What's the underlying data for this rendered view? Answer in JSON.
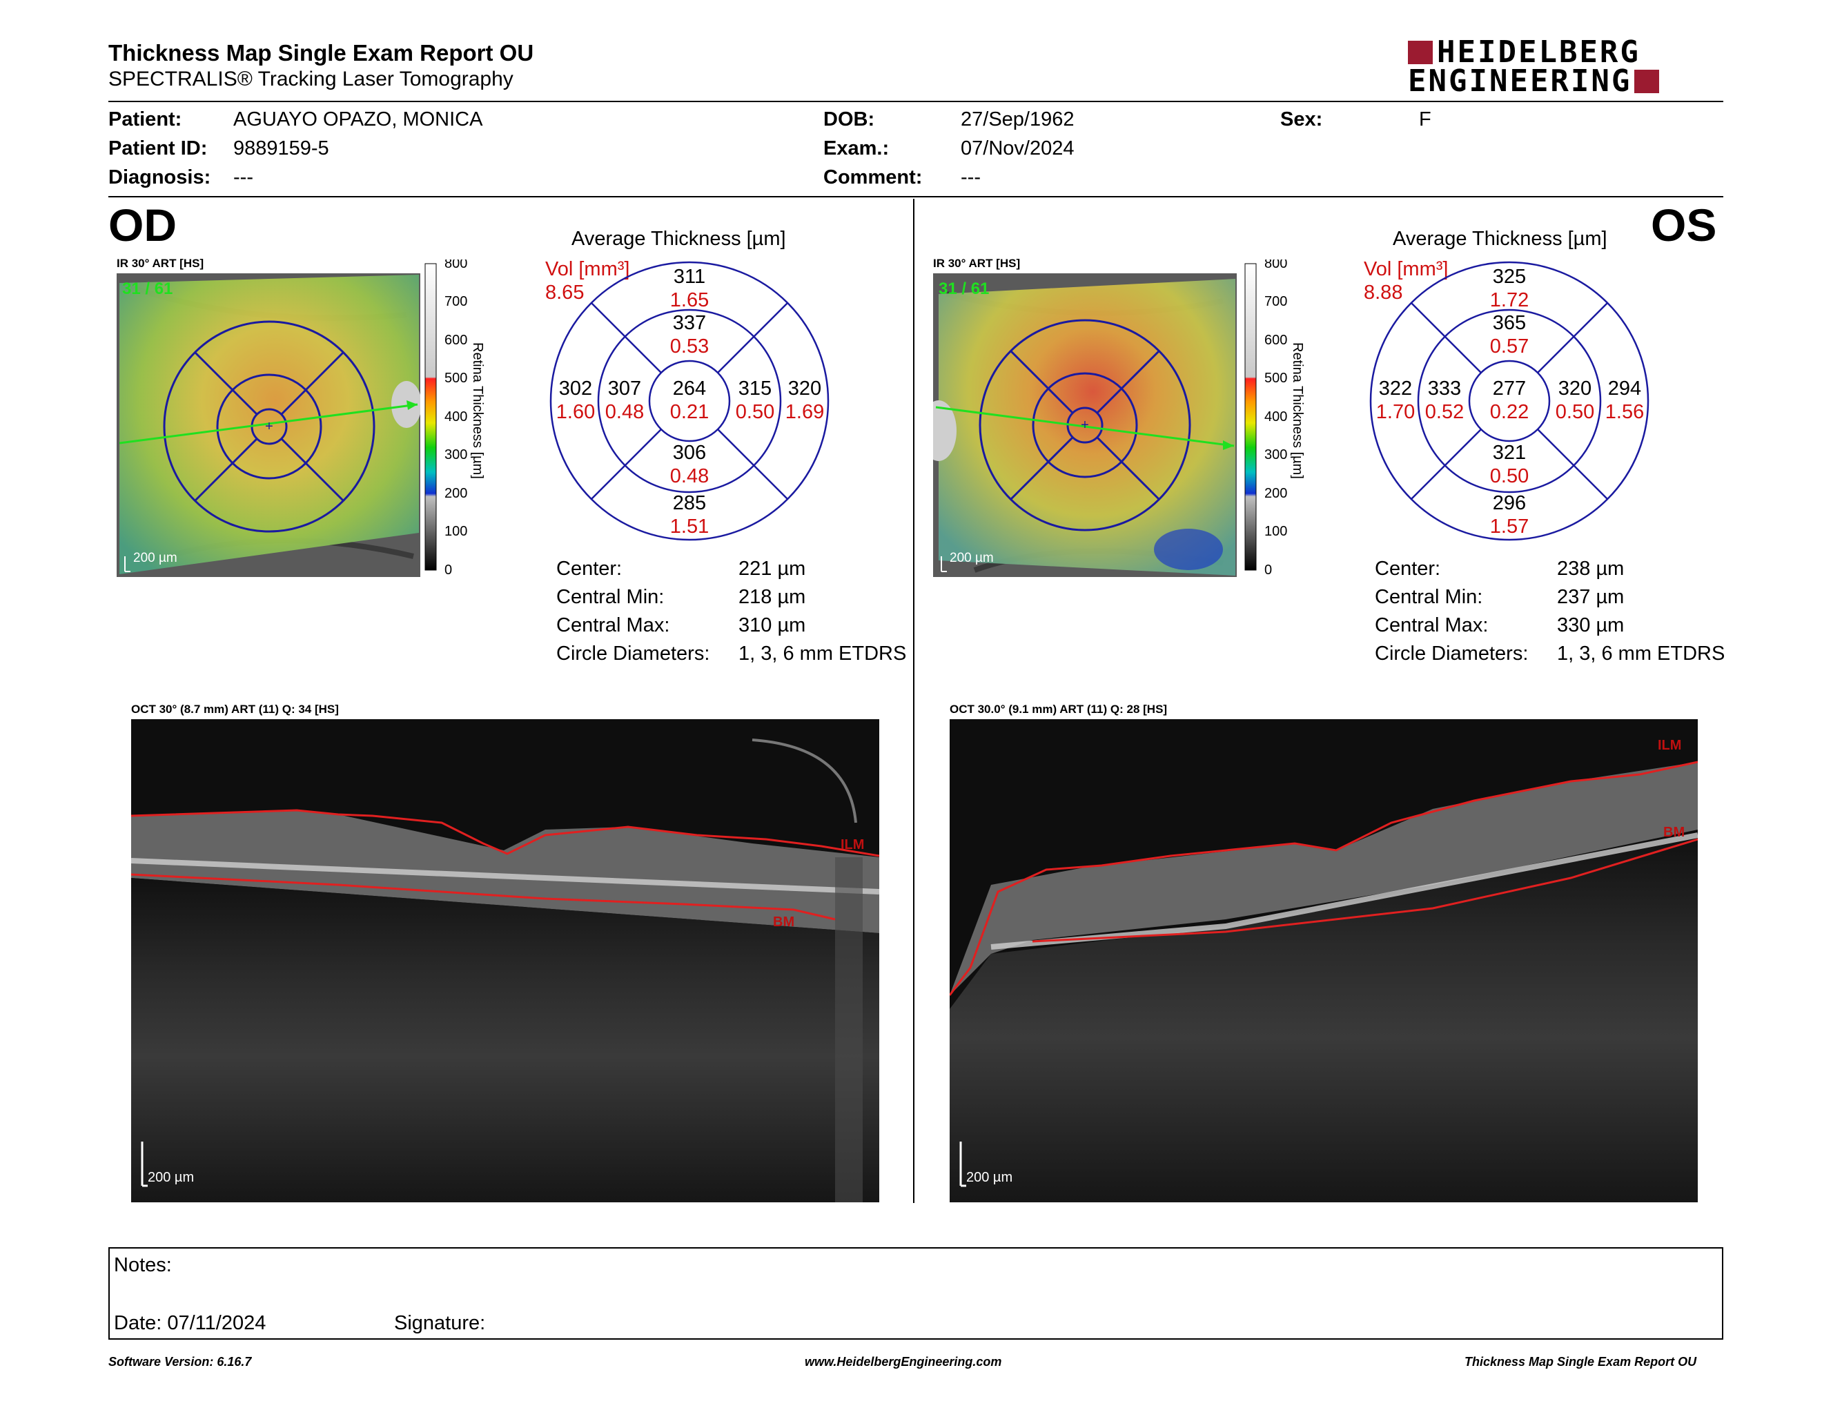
{
  "header": {
    "title": "Thickness Map Single Exam Report OU",
    "subtitle": "SPECTRALIS® Tracking Laser Tomography",
    "logo_line1": "HEIDELBERG",
    "logo_line2": "ENGINEERING",
    "brand_color": "#9b1b30"
  },
  "patient": {
    "name_label": "Patient:",
    "name": "AGUAYO OPAZO, MONICA",
    "id_label": "Patient ID:",
    "id": "9889159-5",
    "diagnosis_label": "Diagnosis:",
    "diagnosis": "---",
    "dob_label": "DOB:",
    "dob": "27/Sep/1962",
    "exam_label": "Exam.:",
    "exam": "07/Nov/2024",
    "comment_label": "Comment:",
    "comment": "---",
    "sex_label": "Sex:",
    "sex": "F"
  },
  "od": {
    "eye": "OD",
    "fundus_label": "IR 30° ART [HS]",
    "fundus_count": "31 / 61",
    "fundus_scale": "200 µm",
    "avg_title": "Average Thickness [µm]",
    "vol_label": "Vol [mm³]",
    "vol_total": "8.65",
    "thickness": {
      "center": "264",
      "inner_top": "337",
      "inner_right": "315",
      "inner_bottom": "306",
      "inner_left": "307",
      "outer_top": "311",
      "outer_right": "320",
      "outer_bottom": "285",
      "outer_left": "302"
    },
    "volume": {
      "center": "0.21",
      "inner_top": "0.53",
      "inner_right": "0.50",
      "inner_bottom": "0.48",
      "inner_left": "0.48",
      "outer_top": "1.65",
      "outer_right": "1.69",
      "outer_bottom": "1.51",
      "outer_left": "1.60"
    },
    "stats": [
      {
        "label": "Center:",
        "value": "221 µm"
      },
      {
        "label": "Central Min:",
        "value": "218 µm"
      },
      {
        "label": "Central Max:",
        "value": "310 µm"
      },
      {
        "label": "Circle Diameters:",
        "value": "1, 3, 6 mm ETDRS"
      }
    ],
    "oct_label": "OCT 30° (8.7 mm) ART (11) Q: 34 [HS]",
    "oct_scale": "200 µm",
    "ilm": "ILM",
    "bm": "BM"
  },
  "os": {
    "eye": "OS",
    "fundus_label": "IR 30° ART [HS]",
    "fundus_count": "31 / 61",
    "fundus_scale": "200 µm",
    "avg_title": "Average Thickness [µm]",
    "vol_label": "Vol [mm³]",
    "vol_total": "8.88",
    "thickness": {
      "center": "277",
      "inner_top": "365",
      "inner_right": "320",
      "inner_bottom": "321",
      "inner_left": "333",
      "outer_top": "325",
      "outer_right": "294",
      "outer_bottom": "296",
      "outer_left": "322"
    },
    "volume": {
      "center": "0.22",
      "inner_top": "0.57",
      "inner_right": "0.50",
      "inner_bottom": "0.50",
      "inner_left": "0.52",
      "outer_top": "1.72",
      "outer_right": "1.56",
      "outer_bottom": "1.57",
      "outer_left": "1.70"
    },
    "stats": [
      {
        "label": "Center:",
        "value": "238 µm"
      },
      {
        "label": "Central Min:",
        "value": "237 µm"
      },
      {
        "label": "Central Max:",
        "value": "330 µm"
      },
      {
        "label": "Circle Diameters:",
        "value": "1, 3, 6 mm ETDRS"
      }
    ],
    "oct_label": "OCT 30.0° (9.1 mm) ART (11) Q: 28 [HS]",
    "oct_scale": "200 µm",
    "ilm": "ILM",
    "bm": "BM"
  },
  "colorbar": {
    "title": "Retina Thickness [µm]",
    "ticks": [
      "800",
      "700",
      "600",
      "500",
      "400",
      "300",
      "200",
      "100",
      "0"
    ]
  },
  "notes": {
    "notes_label": "Notes:",
    "date_label": "Date: 07/11/2024",
    "signature_label": "Signature:"
  },
  "footer": {
    "software": "Software Version: 6.16.7",
    "website": "www.HeidelbergEngineering.com",
    "report": "Thickness Map Single Exam Report OU"
  }
}
